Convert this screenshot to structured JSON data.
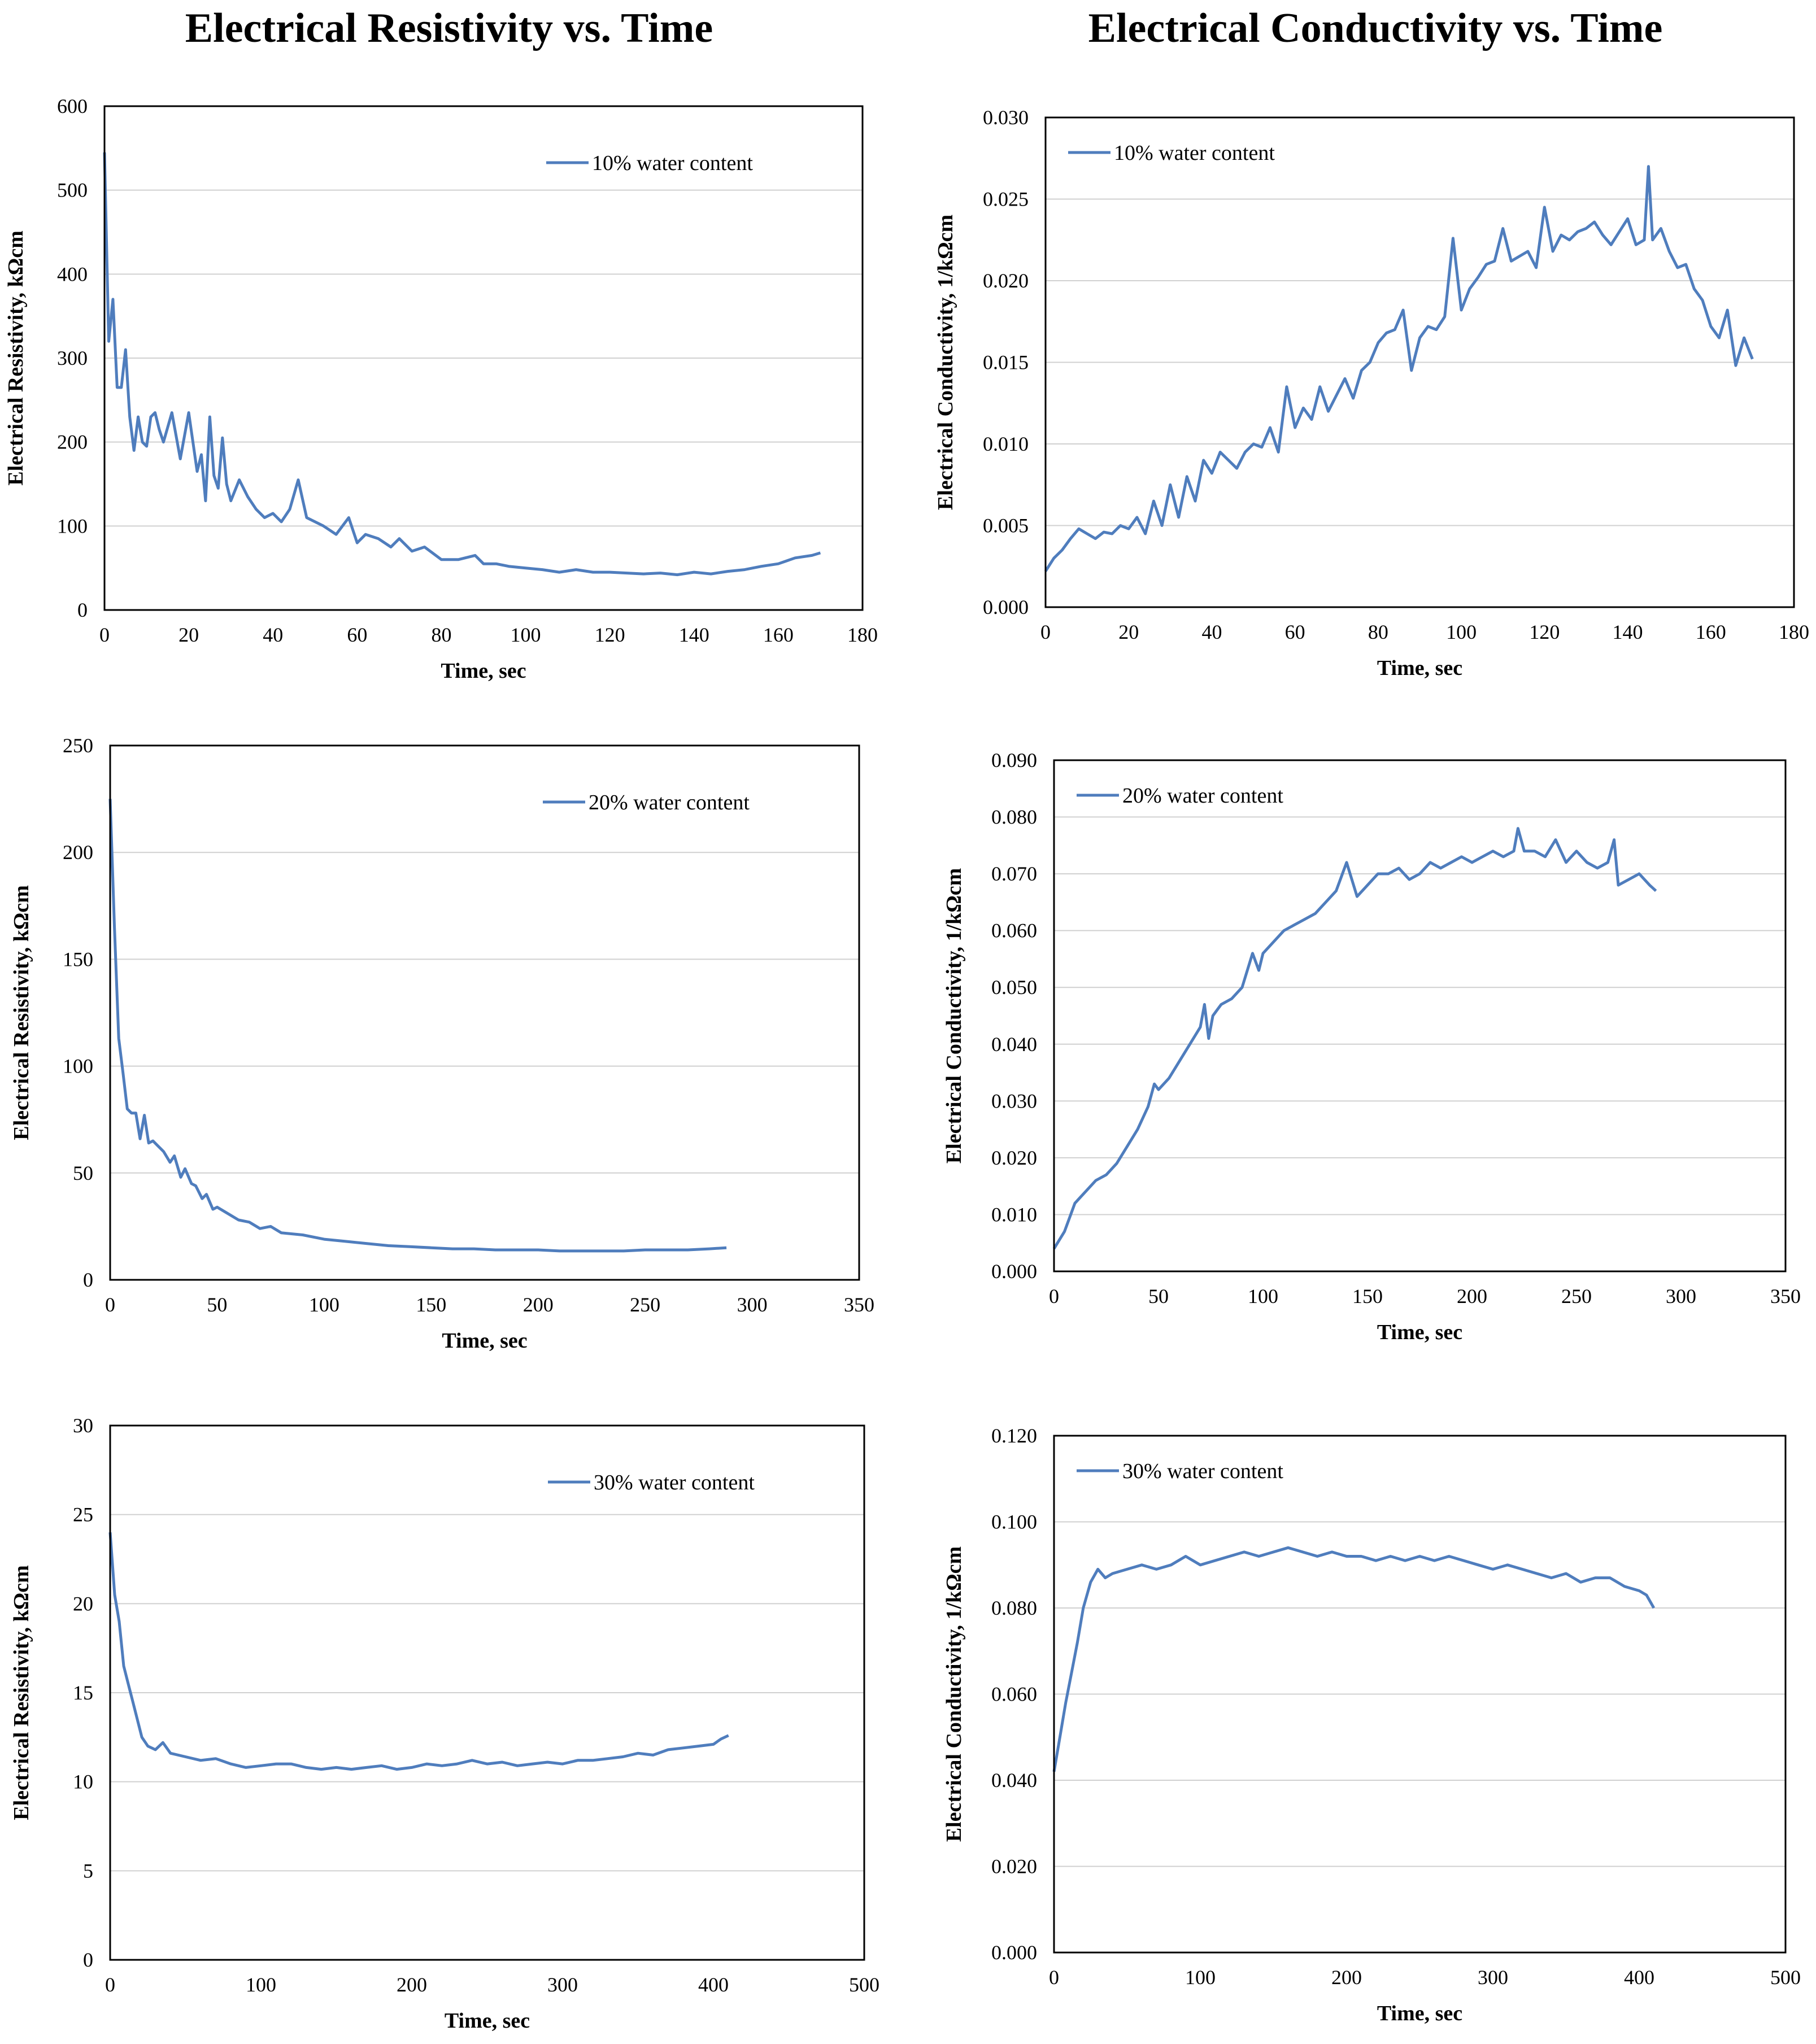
{
  "titles": {
    "left": "Electrical Resistivity vs. Time",
    "right": "Electrical Conductivity vs. Time"
  },
  "colors": {
    "series": "#4f7dbd",
    "grid": "#d0d0d0",
    "frame": "#000000"
  },
  "chart_data": [
    {
      "id": "res10",
      "type": "line",
      "title": "Electrical Resistivity vs. Time",
      "xlabel": "Time, sec",
      "ylabel": "Electrical Resistivity, kΩcm",
      "xlim": [
        0,
        180
      ],
      "ylim": [
        0,
        600
      ],
      "xticks": [
        0,
        20,
        40,
        60,
        80,
        100,
        120,
        140,
        160,
        180
      ],
      "yticks": [
        0,
        100,
        200,
        300,
        400,
        500,
        600
      ],
      "ydecimals": 0,
      "legend": "10% water content",
      "legend_position": "top-right",
      "grid": "horizontal",
      "series": [
        {
          "name": "10% water content",
          "x": [
            0,
            1,
            2,
            3,
            4,
            5,
            6,
            7,
            8,
            9,
            10,
            11,
            12,
            13,
            14,
            16,
            18,
            20,
            22,
            23,
            24,
            25,
            26,
            27,
            28,
            29,
            30,
            32,
            34,
            36,
            38,
            40,
            42,
            44,
            46,
            48,
            50,
            52,
            55,
            58,
            60,
            62,
            65,
            68,
            70,
            73,
            76,
            80,
            84,
            88,
            90,
            93,
            96,
            100,
            104,
            108,
            112,
            116,
            120,
            124,
            128,
            132,
            136,
            140,
            144,
            148,
            152,
            156,
            160,
            164,
            168,
            170
          ],
          "y": [
            545,
            320,
            370,
            265,
            265,
            310,
            230,
            190,
            230,
            200,
            195,
            230,
            235,
            215,
            200,
            235,
            180,
            235,
            165,
            185,
            130,
            230,
            160,
            145,
            205,
            150,
            130,
            155,
            135,
            120,
            110,
            115,
            105,
            120,
            155,
            110,
            105,
            100,
            90,
            110,
            80,
            90,
            85,
            75,
            85,
            70,
            75,
            60,
            60,
            65,
            55,
            55,
            52,
            50,
            48,
            45,
            48,
            45,
            45,
            44,
            43,
            44,
            42,
            45,
            43,
            46,
            48,
            52,
            55,
            62,
            65,
            68
          ]
        }
      ]
    },
    {
      "id": "con10",
      "type": "line",
      "title": "Electrical Conductivity vs. Time",
      "xlabel": "Time, sec",
      "ylabel": "Electrical Conductivity, 1/kΩcm",
      "xlim": [
        0,
        180
      ],
      "ylim": [
        0,
        0.03
      ],
      "xticks": [
        0,
        20,
        40,
        60,
        80,
        100,
        120,
        140,
        160,
        180
      ],
      "yticks": [
        0,
        0.005,
        0.01,
        0.015,
        0.02,
        0.025,
        0.03
      ],
      "ydecimals": 3,
      "legend": "10% water content",
      "legend_position": "top-left",
      "grid": "horizontal",
      "series": [
        {
          "name": "10% water content",
          "x": [
            0,
            2,
            4,
            6,
            8,
            10,
            12,
            14,
            16,
            18,
            20,
            22,
            24,
            26,
            28,
            30,
            32,
            34,
            36,
            38,
            40,
            42,
            44,
            46,
            48,
            50,
            52,
            54,
            56,
            58,
            60,
            62,
            64,
            66,
            68,
            70,
            72,
            74,
            76,
            78,
            80,
            82,
            84,
            86,
            88,
            90,
            92,
            94,
            96,
            98,
            100,
            102,
            104,
            106,
            108,
            110,
            112,
            114,
            116,
            118,
            120,
            122,
            124,
            126,
            128,
            130,
            132,
            134,
            136,
            138,
            140,
            142,
            144,
            145,
            146,
            148,
            150,
            152,
            154,
            156,
            158,
            160,
            162,
            164,
            166,
            168,
            170
          ],
          "y": [
            0.0022,
            0.003,
            0.0035,
            0.0042,
            0.0048,
            0.0045,
            0.0042,
            0.0046,
            0.0045,
            0.005,
            0.0048,
            0.0055,
            0.0045,
            0.0065,
            0.005,
            0.0075,
            0.0055,
            0.008,
            0.0065,
            0.009,
            0.0082,
            0.0095,
            0.009,
            0.0085,
            0.0095,
            0.01,
            0.0098,
            0.011,
            0.0095,
            0.0135,
            0.011,
            0.0122,
            0.0115,
            0.0135,
            0.012,
            0.013,
            0.014,
            0.0128,
            0.0145,
            0.015,
            0.0162,
            0.0168,
            0.017,
            0.0182,
            0.0145,
            0.0165,
            0.0172,
            0.017,
            0.0178,
            0.0226,
            0.0182,
            0.0195,
            0.0202,
            0.021,
            0.0212,
            0.0232,
            0.0212,
            0.0215,
            0.0218,
            0.0208,
            0.0245,
            0.0218,
            0.0228,
            0.0225,
            0.023,
            0.0232,
            0.0236,
            0.0228,
            0.0222,
            0.023,
            0.0238,
            0.0222,
            0.0225,
            0.027,
            0.0225,
            0.0232,
            0.0218,
            0.0208,
            0.021,
            0.0195,
            0.0188,
            0.0172,
            0.0165,
            0.0182,
            0.0148,
            0.0165,
            0.0152
          ]
        }
      ]
    },
    {
      "id": "res20",
      "type": "line",
      "title": "Electrical Resistivity vs. Time",
      "xlabel": "Time, sec",
      "ylabel": "Electrical Resistivity, kΩcm",
      "xlim": [
        0,
        350
      ],
      "ylim": [
        0,
        250
      ],
      "xticks": [
        0,
        50,
        100,
        150,
        200,
        250,
        300,
        350
      ],
      "yticks": [
        0,
        50,
        100,
        150,
        200,
        250
      ],
      "ydecimals": 0,
      "legend": "20% water content",
      "legend_position": "top-right",
      "grid": "horizontal",
      "series": [
        {
          "name": "20% water content",
          "x": [
            0,
            2,
            4,
            6,
            8,
            10,
            12,
            14,
            16,
            18,
            20,
            22,
            25,
            28,
            30,
            33,
            35,
            38,
            40,
            43,
            45,
            48,
            50,
            55,
            60,
            65,
            70,
            75,
            80,
            90,
            100,
            110,
            120,
            130,
            140,
            150,
            160,
            170,
            180,
            190,
            200,
            210,
            220,
            230,
            240,
            250,
            260,
            270,
            280,
            288
          ],
          "y": [
            225,
            165,
            113,
            97,
            80,
            78,
            78,
            66,
            77,
            64,
            65,
            63,
            60,
            55,
            58,
            48,
            52,
            45,
            44,
            38,
            40,
            33,
            34,
            31,
            28,
            27,
            24,
            25,
            22,
            21,
            19,
            18,
            17,
            16,
            15.5,
            15,
            14.5,
            14.5,
            14,
            14,
            14,
            13.5,
            13.5,
            13.5,
            13.5,
            14,
            14,
            14,
            14.5,
            15
          ]
        }
      ]
    },
    {
      "id": "con20",
      "type": "line",
      "title": "Electrical Conductivity vs. Time",
      "xlabel": "Time, sec",
      "ylabel": "Electrical Conductivity, 1/kΩcm",
      "xlim": [
        0,
        350
      ],
      "ylim": [
        0,
        0.09
      ],
      "xticks": [
        0,
        50,
        100,
        150,
        200,
        250,
        300,
        350
      ],
      "yticks": [
        0,
        0.01,
        0.02,
        0.03,
        0.04,
        0.05,
        0.06,
        0.07,
        0.08,
        0.09
      ],
      "ydecimals": 3,
      "legend": "20% water content",
      "legend_position": "top-left",
      "grid": "horizontal",
      "series": [
        {
          "name": "20% water content",
          "x": [
            0,
            5,
            10,
            15,
            20,
            25,
            30,
            35,
            40,
            45,
            48,
            50,
            55,
            60,
            65,
            70,
            72,
            74,
            76,
            78,
            80,
            85,
            90,
            95,
            98,
            100,
            105,
            110,
            115,
            120,
            125,
            130,
            135,
            140,
            145,
            150,
            155,
            160,
            165,
            170,
            175,
            180,
            185,
            190,
            195,
            200,
            205,
            210,
            215,
            220,
            222,
            225,
            230,
            235,
            240,
            245,
            250,
            255,
            260,
            265,
            268,
            270,
            275,
            280,
            285,
            288
          ],
          "y": [
            0.004,
            0.007,
            0.012,
            0.014,
            0.016,
            0.017,
            0.019,
            0.022,
            0.025,
            0.029,
            0.033,
            0.032,
            0.034,
            0.037,
            0.04,
            0.043,
            0.047,
            0.041,
            0.045,
            0.046,
            0.047,
            0.048,
            0.05,
            0.056,
            0.053,
            0.056,
            0.058,
            0.06,
            0.061,
            0.062,
            0.063,
            0.065,
            0.067,
            0.072,
            0.066,
            0.068,
            0.07,
            0.07,
            0.071,
            0.069,
            0.07,
            0.072,
            0.071,
            0.072,
            0.073,
            0.072,
            0.073,
            0.074,
            0.073,
            0.074,
            0.078,
            0.074,
            0.074,
            0.073,
            0.076,
            0.072,
            0.074,
            0.072,
            0.071,
            0.072,
            0.076,
            0.068,
            0.069,
            0.07,
            0.068,
            0.067
          ]
        }
      ]
    },
    {
      "id": "res30",
      "type": "line",
      "title": "Electrical Resistivity vs. Time",
      "xlabel": "Time, sec",
      "ylabel": "Electrical Resistivity, kΩcm",
      "xlim": [
        0,
        500
      ],
      "ylim": [
        0,
        30
      ],
      "xticks": [
        0,
        100,
        200,
        300,
        400,
        500
      ],
      "yticks": [
        0,
        5,
        10,
        15,
        20,
        25,
        30
      ],
      "ydecimals": 0,
      "legend": "30% water content",
      "legend_position": "top-right",
      "grid": "horizontal",
      "series": [
        {
          "name": "30% water content",
          "x": [
            0,
            3,
            6,
            9,
            12,
            15,
            18,
            21,
            25,
            30,
            35,
            40,
            50,
            60,
            70,
            80,
            90,
            100,
            110,
            120,
            130,
            140,
            150,
            160,
            170,
            180,
            190,
            200,
            210,
            220,
            230,
            240,
            250,
            260,
            270,
            280,
            290,
            300,
            310,
            320,
            330,
            340,
            350,
            360,
            370,
            380,
            390,
            400,
            405,
            410
          ],
          "y": [
            24,
            20.5,
            19,
            16.5,
            15.5,
            14.5,
            13.5,
            12.5,
            12,
            11.8,
            12.2,
            11.6,
            11.4,
            11.2,
            11.3,
            11.0,
            10.8,
            10.9,
            11.0,
            11.0,
            10.8,
            10.7,
            10.8,
            10.7,
            10.8,
            10.9,
            10.7,
            10.8,
            11.0,
            10.9,
            11.0,
            11.2,
            11.0,
            11.1,
            10.9,
            11.0,
            11.1,
            11.0,
            11.2,
            11.2,
            11.3,
            11.4,
            11.6,
            11.5,
            11.8,
            11.9,
            12.0,
            12.1,
            12.4,
            12.6
          ]
        }
      ]
    },
    {
      "id": "con30",
      "type": "line",
      "title": "Electrical Conductivity vs. Time",
      "xlabel": "Time, sec",
      "ylabel": "Electrical Conductivity, 1/kΩcm",
      "xlim": [
        0,
        500
      ],
      "ylim": [
        0,
        0.12
      ],
      "xticks": [
        0,
        100,
        200,
        300,
        400,
        500
      ],
      "yticks": [
        0,
        0.02,
        0.04,
        0.06,
        0.08,
        0.1,
        0.12
      ],
      "ydecimals": 3,
      "legend": "30% water content",
      "legend_position": "top-left",
      "grid": "horizontal",
      "series": [
        {
          "name": "30% water content",
          "x": [
            0,
            4,
            8,
            12,
            16,
            20,
            25,
            30,
            35,
            40,
            50,
            60,
            70,
            80,
            90,
            100,
            110,
            120,
            130,
            140,
            150,
            160,
            170,
            180,
            190,
            200,
            210,
            220,
            230,
            240,
            250,
            260,
            270,
            280,
            290,
            300,
            310,
            320,
            330,
            340,
            350,
            360,
            370,
            380,
            390,
            400,
            405,
            410
          ],
          "y": [
            0.042,
            0.05,
            0.058,
            0.065,
            0.072,
            0.08,
            0.086,
            0.089,
            0.087,
            0.088,
            0.089,
            0.09,
            0.089,
            0.09,
            0.092,
            0.09,
            0.091,
            0.092,
            0.093,
            0.092,
            0.093,
            0.094,
            0.093,
            0.092,
            0.093,
            0.092,
            0.092,
            0.091,
            0.092,
            0.091,
            0.092,
            0.091,
            0.092,
            0.091,
            0.09,
            0.089,
            0.09,
            0.089,
            0.088,
            0.087,
            0.088,
            0.086,
            0.087,
            0.087,
            0.085,
            0.084,
            0.083,
            0.08
          ]
        }
      ]
    }
  ]
}
